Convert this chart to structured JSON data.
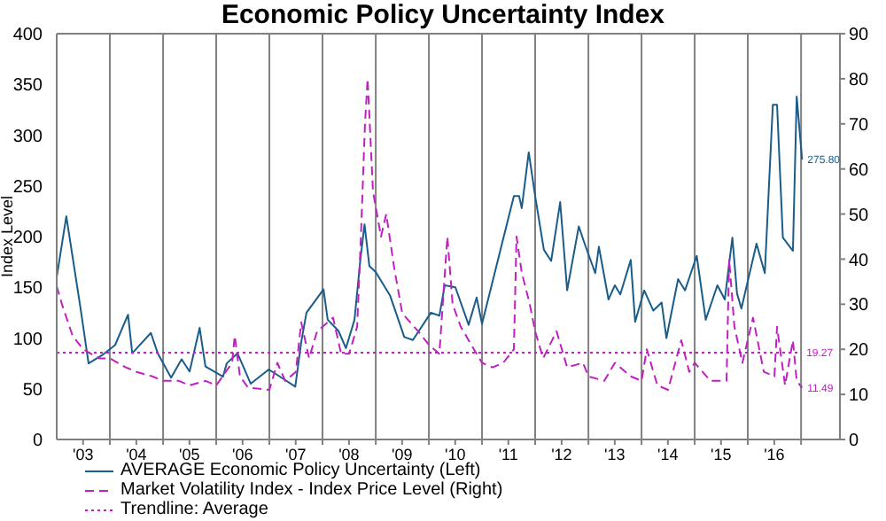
{
  "chart_data": {
    "type": "line",
    "title": "Economic Policy Uncertainty Index",
    "ylabel": "Index Level",
    "xlim": [
      "2003-01-01",
      "2017-09-25"
    ],
    "xticks": [
      {
        "value": "2003-07-01",
        "label": "'03"
      },
      {
        "value": "2004-01-01",
        "label": null
      },
      {
        "value": "2004-07-01",
        "label": "'04"
      },
      {
        "value": "2005-01-01",
        "label": null
      },
      {
        "value": "2005-07-01",
        "label": "'05"
      },
      {
        "value": "2006-01-01",
        "label": null
      },
      {
        "value": "2006-07-01",
        "label": "'06"
      },
      {
        "value": "2007-01-01",
        "label": null
      },
      {
        "value": "2007-07-01",
        "label": "'07"
      },
      {
        "value": "2008-01-01",
        "label": null
      },
      {
        "value": "2008-07-01",
        "label": "'08"
      },
      {
        "value": "2009-01-01",
        "label": null
      },
      {
        "value": "2009-07-01",
        "label": "'09"
      },
      {
        "value": "2010-01-01",
        "label": null
      },
      {
        "value": "2010-07-01",
        "label": "'10"
      },
      {
        "value": "2011-01-01",
        "label": null
      },
      {
        "value": "2011-07-01",
        "label": "'11"
      },
      {
        "value": "2012-01-01",
        "label": null
      },
      {
        "value": "2012-07-01",
        "label": "'12"
      },
      {
        "value": "2013-01-01",
        "label": null
      },
      {
        "value": "2013-07-01",
        "label": "'13"
      },
      {
        "value": "2014-01-01",
        "label": null
      },
      {
        "value": "2014-07-01",
        "label": "'14"
      },
      {
        "value": "2015-01-01",
        "label": null
      },
      {
        "value": "2015-07-01",
        "label": "'15"
      },
      {
        "value": "2016-01-01",
        "label": null
      },
      {
        "value": "2016-07-01",
        "label": "'16"
      },
      {
        "value": "2017-01-01",
        "label": null
      }
    ],
    "ylim": [
      0,
      400
    ],
    "yticks": [
      0,
      50,
      100,
      150,
      200,
      250,
      300,
      350,
      400
    ],
    "y2lim": [
      0,
      90
    ],
    "y2ticks": [
      0,
      10,
      20,
      30,
      40,
      50,
      60,
      70,
      80,
      90
    ],
    "grid": true,
    "legend": "bottom",
    "series": [
      {
        "name": "AVERAGE Economic Policy Uncertainty  (Left)",
        "color": "#1a5c8a",
        "line_style": "solid",
        "x": [
          "2003-01-01",
          "2003-03-08",
          "2003-06-13",
          "2003-08-08",
          "2003-11-18",
          "2004-02-06",
          "2004-05-05",
          "2004-06-03",
          "2004-10-09",
          "2004-11-25",
          "2005-02-25",
          "2005-05-08",
          "2005-07-02",
          "2005-09-09",
          "2005-10-19",
          "2006-02-17",
          "2006-03-14",
          "2006-05-27",
          "2006-08-26",
          "2006-12-28",
          "2007-03-14",
          "2007-06-28",
          "2007-08-08",
          "2007-09-13",
          "2008-01-08",
          "2008-02-06",
          "2008-04-20",
          "2008-06-10",
          "2008-08-08",
          "2008-09-17",
          "2008-10-16",
          "2008-11-18",
          "2009-01-01",
          "2009-04-09",
          "2009-07-16",
          "2009-09-13",
          "2010-01-15",
          "2010-03-14",
          "2010-04-20",
          "2010-07-02",
          "2010-10-01",
          "2010-11-25",
          "2011-01-01",
          "2011-08-08",
          "2011-09-13",
          "2011-10-01",
          "2011-11-18",
          "2012-01-01",
          "2012-03-01",
          "2012-04-20",
          "2012-06-21",
          "2012-08-08",
          "2012-10-27",
          "2012-12-06",
          "2013-02-17",
          "2013-03-14",
          "2013-05-19",
          "2013-07-02",
          "2013-08-08",
          "2013-10-19",
          "2013-11-18",
          "2014-01-19",
          "2014-03-23",
          "2014-05-19",
          "2014-06-21",
          "2014-09-09",
          "2014-10-27",
          "2015-01-15",
          "2015-03-18",
          "2015-06-06",
          "2015-07-27",
          "2015-09-17",
          "2015-10-19",
          "2015-11-18",
          "2016-03-01",
          "2016-04-27",
          "2016-06-21",
          "2016-07-20",
          "2016-08-29",
          "2016-11-06",
          "2016-12-02",
          "2017-01-08"
        ],
        "values": [
          160,
          220,
          130,
          75,
          84,
          93,
          123,
          85,
          105,
          85,
          61,
          79,
          67,
          110,
          72,
          62,
          75,
          85,
          55,
          69,
          62,
          52,
          96,
          125,
          148,
          118,
          107,
          90,
          118,
          177,
          212,
          171,
          165,
          142,
          101,
          98,
          125,
          122,
          152,
          150,
          113,
          140,
          114,
          240,
          240,
          228,
          283,
          240,
          187,
          176,
          234,
          147,
          210,
          193,
          164,
          190,
          138,
          152,
          143,
          177,
          116,
          147,
          127,
          135,
          100,
          158,
          147,
          181,
          118,
          152,
          138,
          199,
          144,
          129,
          193,
          164,
          330,
          330,
          199,
          186,
          338,
          275.8
        ],
        "value_labels": [
          null,
          null,
          null,
          null,
          null,
          null,
          null,
          null,
          null,
          null,
          null,
          null,
          null,
          null,
          null,
          null,
          null,
          null,
          null,
          null,
          null,
          null,
          null,
          null,
          null,
          null,
          null,
          null,
          null,
          null,
          null,
          null,
          null,
          null,
          null,
          null,
          null,
          null,
          null,
          null,
          null,
          null,
          null,
          null,
          null,
          null,
          null,
          null,
          null,
          null,
          null,
          null,
          null,
          null,
          null,
          null,
          null,
          null,
          null,
          null,
          null,
          null,
          null,
          null,
          null,
          null,
          null,
          null,
          null,
          null,
          null,
          null,
          null,
          null,
          null,
          null,
          null,
          null,
          null,
          null,
          null,
          "275.80"
        ]
      },
      {
        "name": "Market Volatility Index - Index Price Level  (Right)",
        "color": "#c020c0",
        "line_style": "dashed",
        "axis": "y2",
        "x": [
          "2003-01-01",
          "2003-02-06",
          "2003-04-20",
          "2003-07-02",
          "2003-10-19",
          "2004-01-01",
          "2004-04-20",
          "2004-07-02",
          "2004-10-19",
          "2005-01-01",
          "2005-04-20",
          "2005-07-02",
          "2005-10-19",
          "2006-01-01",
          "2006-04-20",
          "2006-05-08",
          "2006-06-13",
          "2006-08-08",
          "2007-01-01",
          "2007-02-25",
          "2007-04-20",
          "2007-07-02",
          "2007-08-08",
          "2007-10-01",
          "2007-11-25",
          "2008-03-14",
          "2008-05-08",
          "2008-07-02",
          "2008-08-26",
          "2008-09-21",
          "2008-10-19",
          "2008-11-06",
          "2008-12-13",
          "2009-02-06",
          "2009-03-14",
          "2009-05-08",
          "2009-07-02",
          "2009-10-19",
          "2010-01-01",
          "2010-03-14",
          "2010-05-08",
          "2010-06-13",
          "2010-08-08",
          "2010-10-19",
          "2011-01-01",
          "2011-03-14",
          "2011-05-27",
          "2011-08-08",
          "2011-08-26",
          "2011-10-01",
          "2011-11-25",
          "2012-01-01",
          "2012-02-25",
          "2012-05-27",
          "2012-08-08",
          "2012-11-25",
          "2013-01-01",
          "2013-04-20",
          "2013-07-02",
          "2013-10-19",
          "2014-01-01",
          "2014-02-06",
          "2014-04-20",
          "2014-07-02",
          "2014-10-01",
          "2014-11-25",
          "2015-01-01",
          "2015-04-20",
          "2015-08-08",
          "2015-08-26",
          "2015-10-01",
          "2015-11-25",
          "2016-02-06",
          "2016-04-20",
          "2016-07-02",
          "2016-07-20",
          "2016-09-13",
          "2016-11-06",
          "2016-12-02",
          "2017-01-08"
        ],
        "values": [
          34,
          30,
          23,
          20,
          18,
          18,
          16,
          15,
          14,
          13,
          13,
          12,
          13,
          12,
          17,
          23,
          14,
          11.5,
          11,
          17,
          13,
          15,
          26,
          18,
          24,
          27,
          19,
          19,
          25,
          45,
          70,
          80,
          55,
          45,
          50,
          38,
          28,
          24,
          21,
          19,
          45,
          30,
          25,
          21,
          17,
          16,
          17,
          20,
          45,
          37,
          30,
          24,
          18,
          24,
          16,
          17,
          14,
          13,
          17,
          14,
          13,
          20,
          12,
          11,
          22,
          15,
          17,
          13,
          13,
          40,
          25,
          17,
          27,
          15,
          14,
          25,
          12,
          22,
          13,
          11.49
        ],
        "value_labels": [
          null,
          null,
          null,
          null,
          null,
          null,
          null,
          null,
          null,
          null,
          null,
          null,
          null,
          null,
          null,
          null,
          null,
          null,
          null,
          null,
          null,
          null,
          null,
          null,
          null,
          null,
          null,
          null,
          null,
          null,
          null,
          null,
          null,
          null,
          null,
          null,
          null,
          null,
          null,
          null,
          null,
          null,
          null,
          null,
          null,
          null,
          null,
          null,
          null,
          null,
          null,
          null,
          null,
          null,
          null,
          null,
          null,
          null,
          null,
          null,
          null,
          null,
          null,
          null,
          null,
          null,
          null,
          null,
          null,
          null,
          null,
          null,
          null,
          null,
          null,
          null,
          null,
          null,
          null,
          "11.49"
        ]
      },
      {
        "name": "Trendline: Average",
        "color": "#c020c0",
        "line_style": "dotted",
        "axis": "y2",
        "x": [
          "2003-01-01",
          "2017-01-01"
        ],
        "values": [
          19.27,
          19.27
        ],
        "value_labels": [
          null,
          "19.27"
        ]
      }
    ]
  }
}
